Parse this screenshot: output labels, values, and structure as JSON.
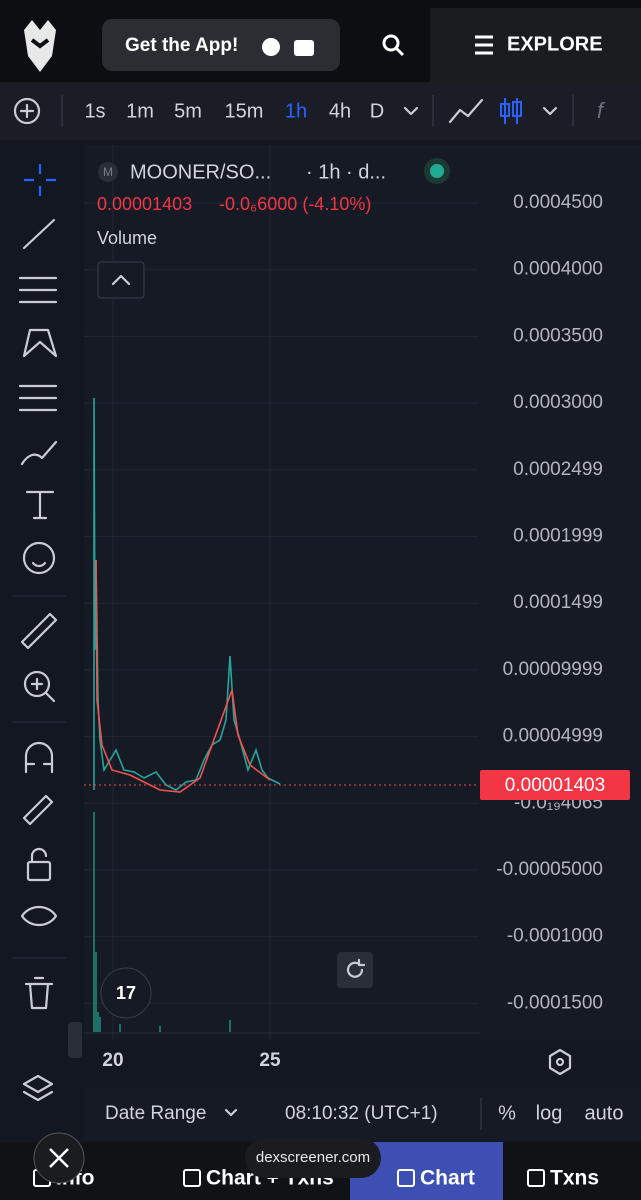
{
  "header": {
    "cta": "Get the App!",
    "menu": "EXPLORE"
  },
  "toolbar": {
    "intervals": [
      "1s",
      "1m",
      "5m",
      "15m",
      "1h",
      "4h",
      "D"
    ],
    "active_interval": "1h"
  },
  "legend": {
    "pair": "MOONER/SO...",
    "interval": "· 1h · d...",
    "price": "0.00001403",
    "change": "-0.0₆6000 (-4.10%)",
    "volume": "Volume"
  },
  "price_axis": {
    "labels": [
      "0.0004500",
      "0.0004000",
      "0.0003500",
      "0.0003000",
      "0.0002499",
      "0.0001999",
      "0.0001499",
      "0.00009999",
      "0.00004999",
      "-0.0₁₉4065",
      "-0.00005000",
      "-0.0001000",
      "-0.0001500"
    ],
    "current": "0.00001403"
  },
  "time_axis": {
    "labels": [
      "20",
      "25"
    ]
  },
  "footer": {
    "date_range": "Date Range",
    "time": "08:10:32 (UTC+1)",
    "percent": "%",
    "log": "log",
    "auto": "auto"
  },
  "tabs": [
    "Info",
    "Chart + Txns",
    "Chart",
    "Txns"
  ],
  "url": "dexscreener.com"
}
